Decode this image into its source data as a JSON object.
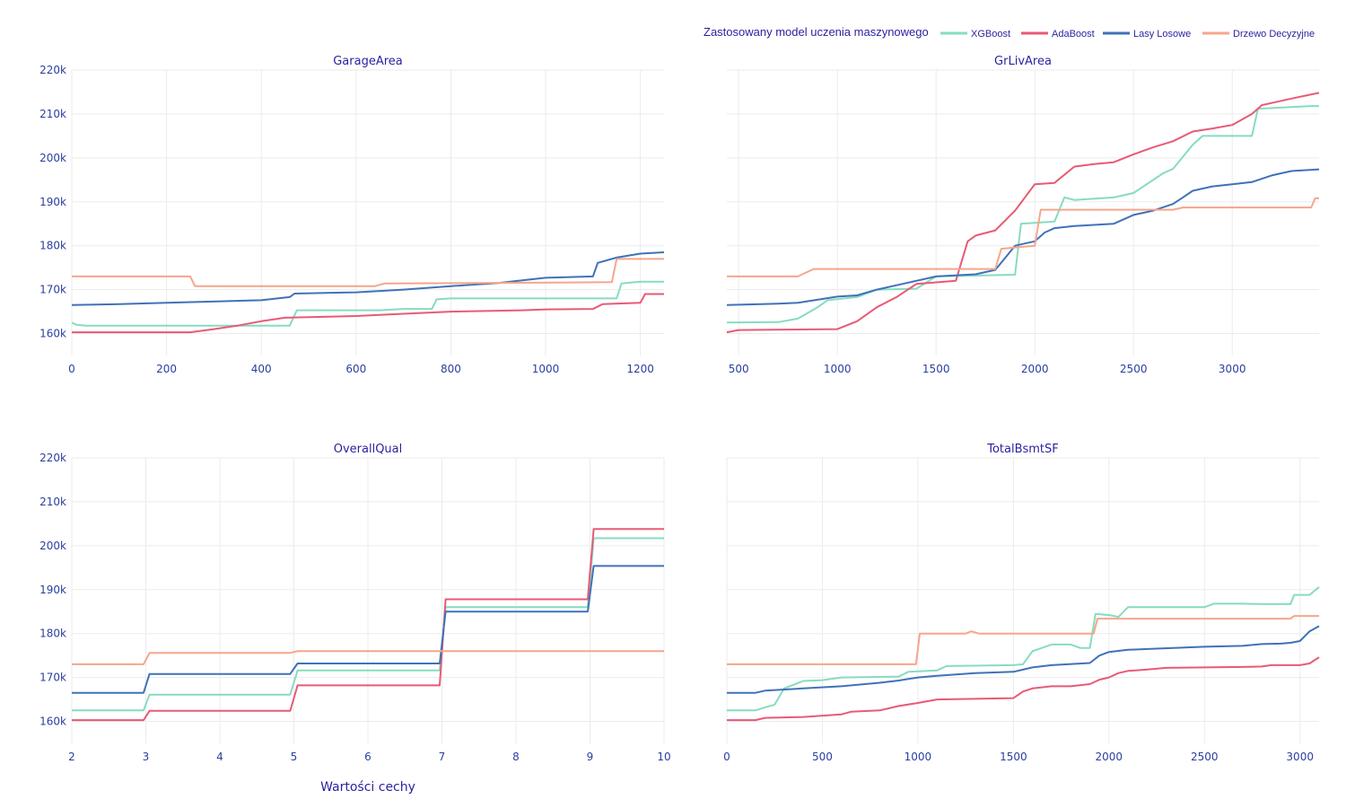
{
  "legend": {
    "title": "Zastosowany model uczenia maszynowego",
    "placement": "top-right",
    "items": [
      {
        "name": "XGBoost",
        "color": "#86dcc0"
      },
      {
        "name": "AdaBoost",
        "color": "#e85a75"
      },
      {
        "name": "Lasy Losowe",
        "color": "#3f72b8"
      },
      {
        "name": "Drzewo Decyzyjne",
        "color": "#f6a58c"
      }
    ]
  },
  "xlabel": "Wartości cechy",
  "chart_data": [
    {
      "type": "line",
      "title": "GarageArea",
      "xlim": [
        0,
        1250
      ],
      "ylim": [
        155000,
        220000
      ],
      "xticks": [
        0,
        200,
        400,
        600,
        800,
        1000,
        1200
      ],
      "xtick_labels": [
        "0",
        "200",
        "400",
        "600",
        "800",
        "1000",
        "1200"
      ],
      "yticks": [
        160000,
        170000,
        180000,
        190000,
        200000,
        210000,
        220000
      ],
      "ytick_labels": [
        "160k",
        "170k",
        "180k",
        "190k",
        "200k",
        "210k",
        "220k"
      ],
      "grid": true,
      "series": [
        {
          "name": "XGBoost",
          "x": [
            0,
            10,
            30,
            460,
            475,
            650,
            700,
            760,
            770,
            800,
            1150,
            1160,
            1200,
            1250
          ],
          "y": [
            162500,
            162000,
            161800,
            161800,
            165300,
            165300,
            165600,
            165600,
            167800,
            168000,
            168000,
            171400,
            171800,
            171800
          ]
        },
        {
          "name": "AdaBoost",
          "x": [
            0,
            250,
            300,
            350,
            400,
            450,
            600,
            700,
            800,
            950,
            1000,
            1100,
            1120,
            1200,
            1210,
            1250
          ],
          "y": [
            160300,
            160300,
            161000,
            161800,
            162800,
            163600,
            164000,
            164500,
            165000,
            165300,
            165500,
            165600,
            166700,
            167000,
            169000,
            169000
          ]
        },
        {
          "name": "Lasy Losowe",
          "x": [
            0,
            100,
            200,
            400,
            460,
            470,
            600,
            700,
            800,
            900,
            1000,
            1100,
            1110,
            1150,
            1200,
            1250
          ],
          "y": [
            166500,
            166700,
            167000,
            167600,
            168300,
            169100,
            169400,
            170000,
            170800,
            171500,
            172700,
            173000,
            176100,
            177300,
            178200,
            178500
          ]
        },
        {
          "name": "Drzewo Decyzyjne",
          "x": [
            0,
            250,
            260,
            640,
            660,
            1140,
            1150,
            1250
          ],
          "y": [
            173000,
            173000,
            170800,
            170800,
            171400,
            171700,
            177000,
            177000
          ]
        }
      ]
    },
    {
      "type": "line",
      "title": "GrLivArea",
      "xlim": [
        440,
        3440
      ],
      "ylim": [
        155000,
        220000
      ],
      "xticks": [
        500,
        1000,
        1500,
        2000,
        2500,
        3000
      ],
      "xtick_labels": [
        "500",
        "1000",
        "1500",
        "2000",
        "2500",
        "3000"
      ],
      "yticks": [
        160000,
        170000,
        180000,
        190000,
        200000,
        210000,
        220000
      ],
      "ytick_labels": [
        "",
        "",
        "",
        "",
        "",
        "",
        ""
      ],
      "grid": true,
      "series": [
        {
          "name": "XGBoost",
          "x": [
            440,
            700,
            800,
            900,
            950,
            1100,
            1200,
            1400,
            1500,
            1900,
            1930,
            2100,
            2150,
            2200,
            2400,
            2500,
            2650,
            2700,
            2800,
            2850,
            3100,
            3130,
            3400,
            3440
          ],
          "y": [
            162500,
            162600,
            163400,
            166000,
            167600,
            168300,
            170000,
            170200,
            173000,
            173400,
            185000,
            185500,
            191000,
            190400,
            191000,
            192000,
            196500,
            197500,
            203000,
            205000,
            205000,
            211200,
            211800,
            211800
          ]
        },
        {
          "name": "AdaBoost",
          "x": [
            440,
            500,
            1000,
            1100,
            1200,
            1300,
            1400,
            1600,
            1660,
            1700,
            1800,
            1900,
            2000,
            2100,
            2200,
            2300,
            2400,
            2500,
            2600,
            2700,
            2800,
            2900,
            3000,
            3100,
            3150,
            3200,
            3300,
            3440
          ],
          "y": [
            160300,
            160800,
            161000,
            162800,
            166000,
            168300,
            171300,
            172000,
            181000,
            182300,
            183500,
            188000,
            194000,
            194300,
            198000,
            198600,
            199000,
            200800,
            202400,
            203800,
            206000,
            206700,
            207500,
            210000,
            212000,
            212500,
            213500,
            214800
          ]
        },
        {
          "name": "Lasy Losowe",
          "x": [
            440,
            700,
            800,
            1000,
            1100,
            1200,
            1300,
            1400,
            1500,
            1700,
            1800,
            1900,
            1950,
            2000,
            2050,
            2100,
            2200,
            2400,
            2500,
            2600,
            2700,
            2750,
            2800,
            2900,
            3000,
            3100,
            3200,
            3300,
            3440
          ],
          "y": [
            166500,
            166800,
            167000,
            168400,
            168700,
            170000,
            171000,
            172000,
            173000,
            173500,
            174500,
            180000,
            180500,
            181000,
            183000,
            184000,
            184500,
            185000,
            187000,
            188000,
            189500,
            191000,
            192500,
            193500,
            194000,
            194500,
            196000,
            197000,
            197400
          ]
        },
        {
          "name": "Drzewo Decyzyjne",
          "x": [
            440,
            800,
            880,
            1800,
            1830,
            2000,
            2030,
            2700,
            2750,
            3400,
            3420,
            3440
          ],
          "y": [
            173000,
            173000,
            174700,
            174700,
            179300,
            180000,
            188200,
            188200,
            188700,
            188700,
            190800,
            190800
          ]
        }
      ]
    },
    {
      "type": "line",
      "title": "OverallQual",
      "xlim": [
        2,
        10
      ],
      "ylim": [
        155000,
        220000
      ],
      "xticks": [
        2,
        3,
        4,
        5,
        6,
        7,
        8,
        9,
        10
      ],
      "xtick_labels": [
        "2",
        "3",
        "4",
        "5",
        "6",
        "7",
        "8",
        "9",
        "10"
      ],
      "yticks": [
        160000,
        170000,
        180000,
        190000,
        200000,
        210000,
        220000
      ],
      "ytick_labels": [
        "160k",
        "170k",
        "180k",
        "190k",
        "200k",
        "210k",
        "220k"
      ],
      "grid": true,
      "series": [
        {
          "name": "XGBoost",
          "x": [
            2,
            2.97,
            3.05,
            4.95,
            5.05,
            6.97,
            7.05,
            8.97,
            9.05,
            10
          ],
          "y": [
            162500,
            162500,
            166100,
            166100,
            171600,
            171600,
            186000,
            186000,
            201700,
            201700
          ]
        },
        {
          "name": "AdaBoost",
          "x": [
            2,
            2.97,
            3.05,
            4.95,
            5.05,
            6.97,
            7.05,
            8.97,
            9.05,
            10
          ],
          "y": [
            160300,
            160300,
            162400,
            162400,
            168200,
            168200,
            187800,
            187800,
            203800,
            203800
          ]
        },
        {
          "name": "Lasy Losowe",
          "x": [
            2,
            2.97,
            3.05,
            4.95,
            5.05,
            6.97,
            7.05,
            8.97,
            9.05,
            10
          ],
          "y": [
            166500,
            166500,
            170800,
            170800,
            173200,
            173200,
            185000,
            185000,
            195400,
            195400
          ]
        },
        {
          "name": "Drzewo Decyzyjne",
          "x": [
            2,
            2.97,
            3.05,
            4.95,
            5.05,
            10
          ],
          "y": [
            173000,
            173000,
            175600,
            175600,
            176000,
            176000
          ]
        }
      ]
    },
    {
      "type": "line",
      "title": "TotalBsmtSF",
      "xlim": [
        0,
        3100
      ],
      "ylim": [
        155000,
        220000
      ],
      "xticks": [
        0,
        500,
        1000,
        1500,
        2000,
        2500,
        3000
      ],
      "xtick_labels": [
        "0",
        "500",
        "1000",
        "1500",
        "2000",
        "2500",
        "3000"
      ],
      "yticks": [
        160000,
        170000,
        180000,
        190000,
        200000,
        210000,
        220000
      ],
      "ytick_labels": [
        "",
        "",
        "",
        "",
        "",
        "",
        ""
      ],
      "grid": true,
      "series": [
        {
          "name": "XGBoost",
          "x": [
            0,
            150,
            200,
            250,
            300,
            400,
            500,
            600,
            900,
            950,
            1100,
            1150,
            1500,
            1550,
            1600,
            1700,
            1800,
            1850,
            1900,
            1930,
            2000,
            2050,
            2100,
            2500,
            2550,
            2700,
            2800,
            2950,
            2970,
            3050,
            3100
          ],
          "y": [
            162500,
            162500,
            163200,
            163800,
            167500,
            169200,
            169400,
            170000,
            170200,
            171300,
            171600,
            172600,
            172800,
            173000,
            176000,
            177500,
            177500,
            176700,
            176700,
            184500,
            184200,
            183800,
            186000,
            186000,
            186800,
            186800,
            186700,
            186700,
            188800,
            188800,
            190600
          ]
        },
        {
          "name": "AdaBoost",
          "x": [
            0,
            150,
            200,
            400,
            600,
            650,
            800,
            900,
            1000,
            1100,
            1500,
            1550,
            1600,
            1700,
            1800,
            1900,
            1950,
            2000,
            2050,
            2100,
            2200,
            2300,
            2500,
            2700,
            2800,
            2850,
            3000,
            3050,
            3100
          ],
          "y": [
            160300,
            160300,
            160800,
            161000,
            161600,
            162200,
            162500,
            163500,
            164200,
            165000,
            165300,
            166800,
            167500,
            168000,
            168000,
            168500,
            169500,
            170000,
            171000,
            171500,
            171800,
            172200,
            172300,
            172400,
            172500,
            172800,
            172800,
            173200,
            174600
          ]
        },
        {
          "name": "Lasy Losowe",
          "x": [
            0,
            150,
            200,
            400,
            600,
            800,
            900,
            1000,
            1100,
            1200,
            1300,
            1500,
            1600,
            1700,
            1900,
            1950,
            2000,
            2100,
            2500,
            2700,
            2800,
            2900,
            2950,
            3000,
            3050,
            3100
          ],
          "y": [
            166500,
            166500,
            167000,
            167500,
            168000,
            168800,
            169300,
            170000,
            170400,
            170700,
            171000,
            171300,
            172300,
            172800,
            173300,
            175000,
            175800,
            176300,
            177000,
            177200,
            177600,
            177700,
            177900,
            178300,
            180500,
            181700
          ]
        },
        {
          "name": "Drzewo Decyzyjne",
          "x": [
            0,
            990,
            1010,
            1250,
            1280,
            1320,
            1920,
            1940,
            2950,
            2970,
            3100
          ],
          "y": [
            173000,
            173000,
            180000,
            180000,
            180500,
            180000,
            180000,
            183400,
            183400,
            184000,
            184000
          ]
        }
      ]
    }
  ]
}
